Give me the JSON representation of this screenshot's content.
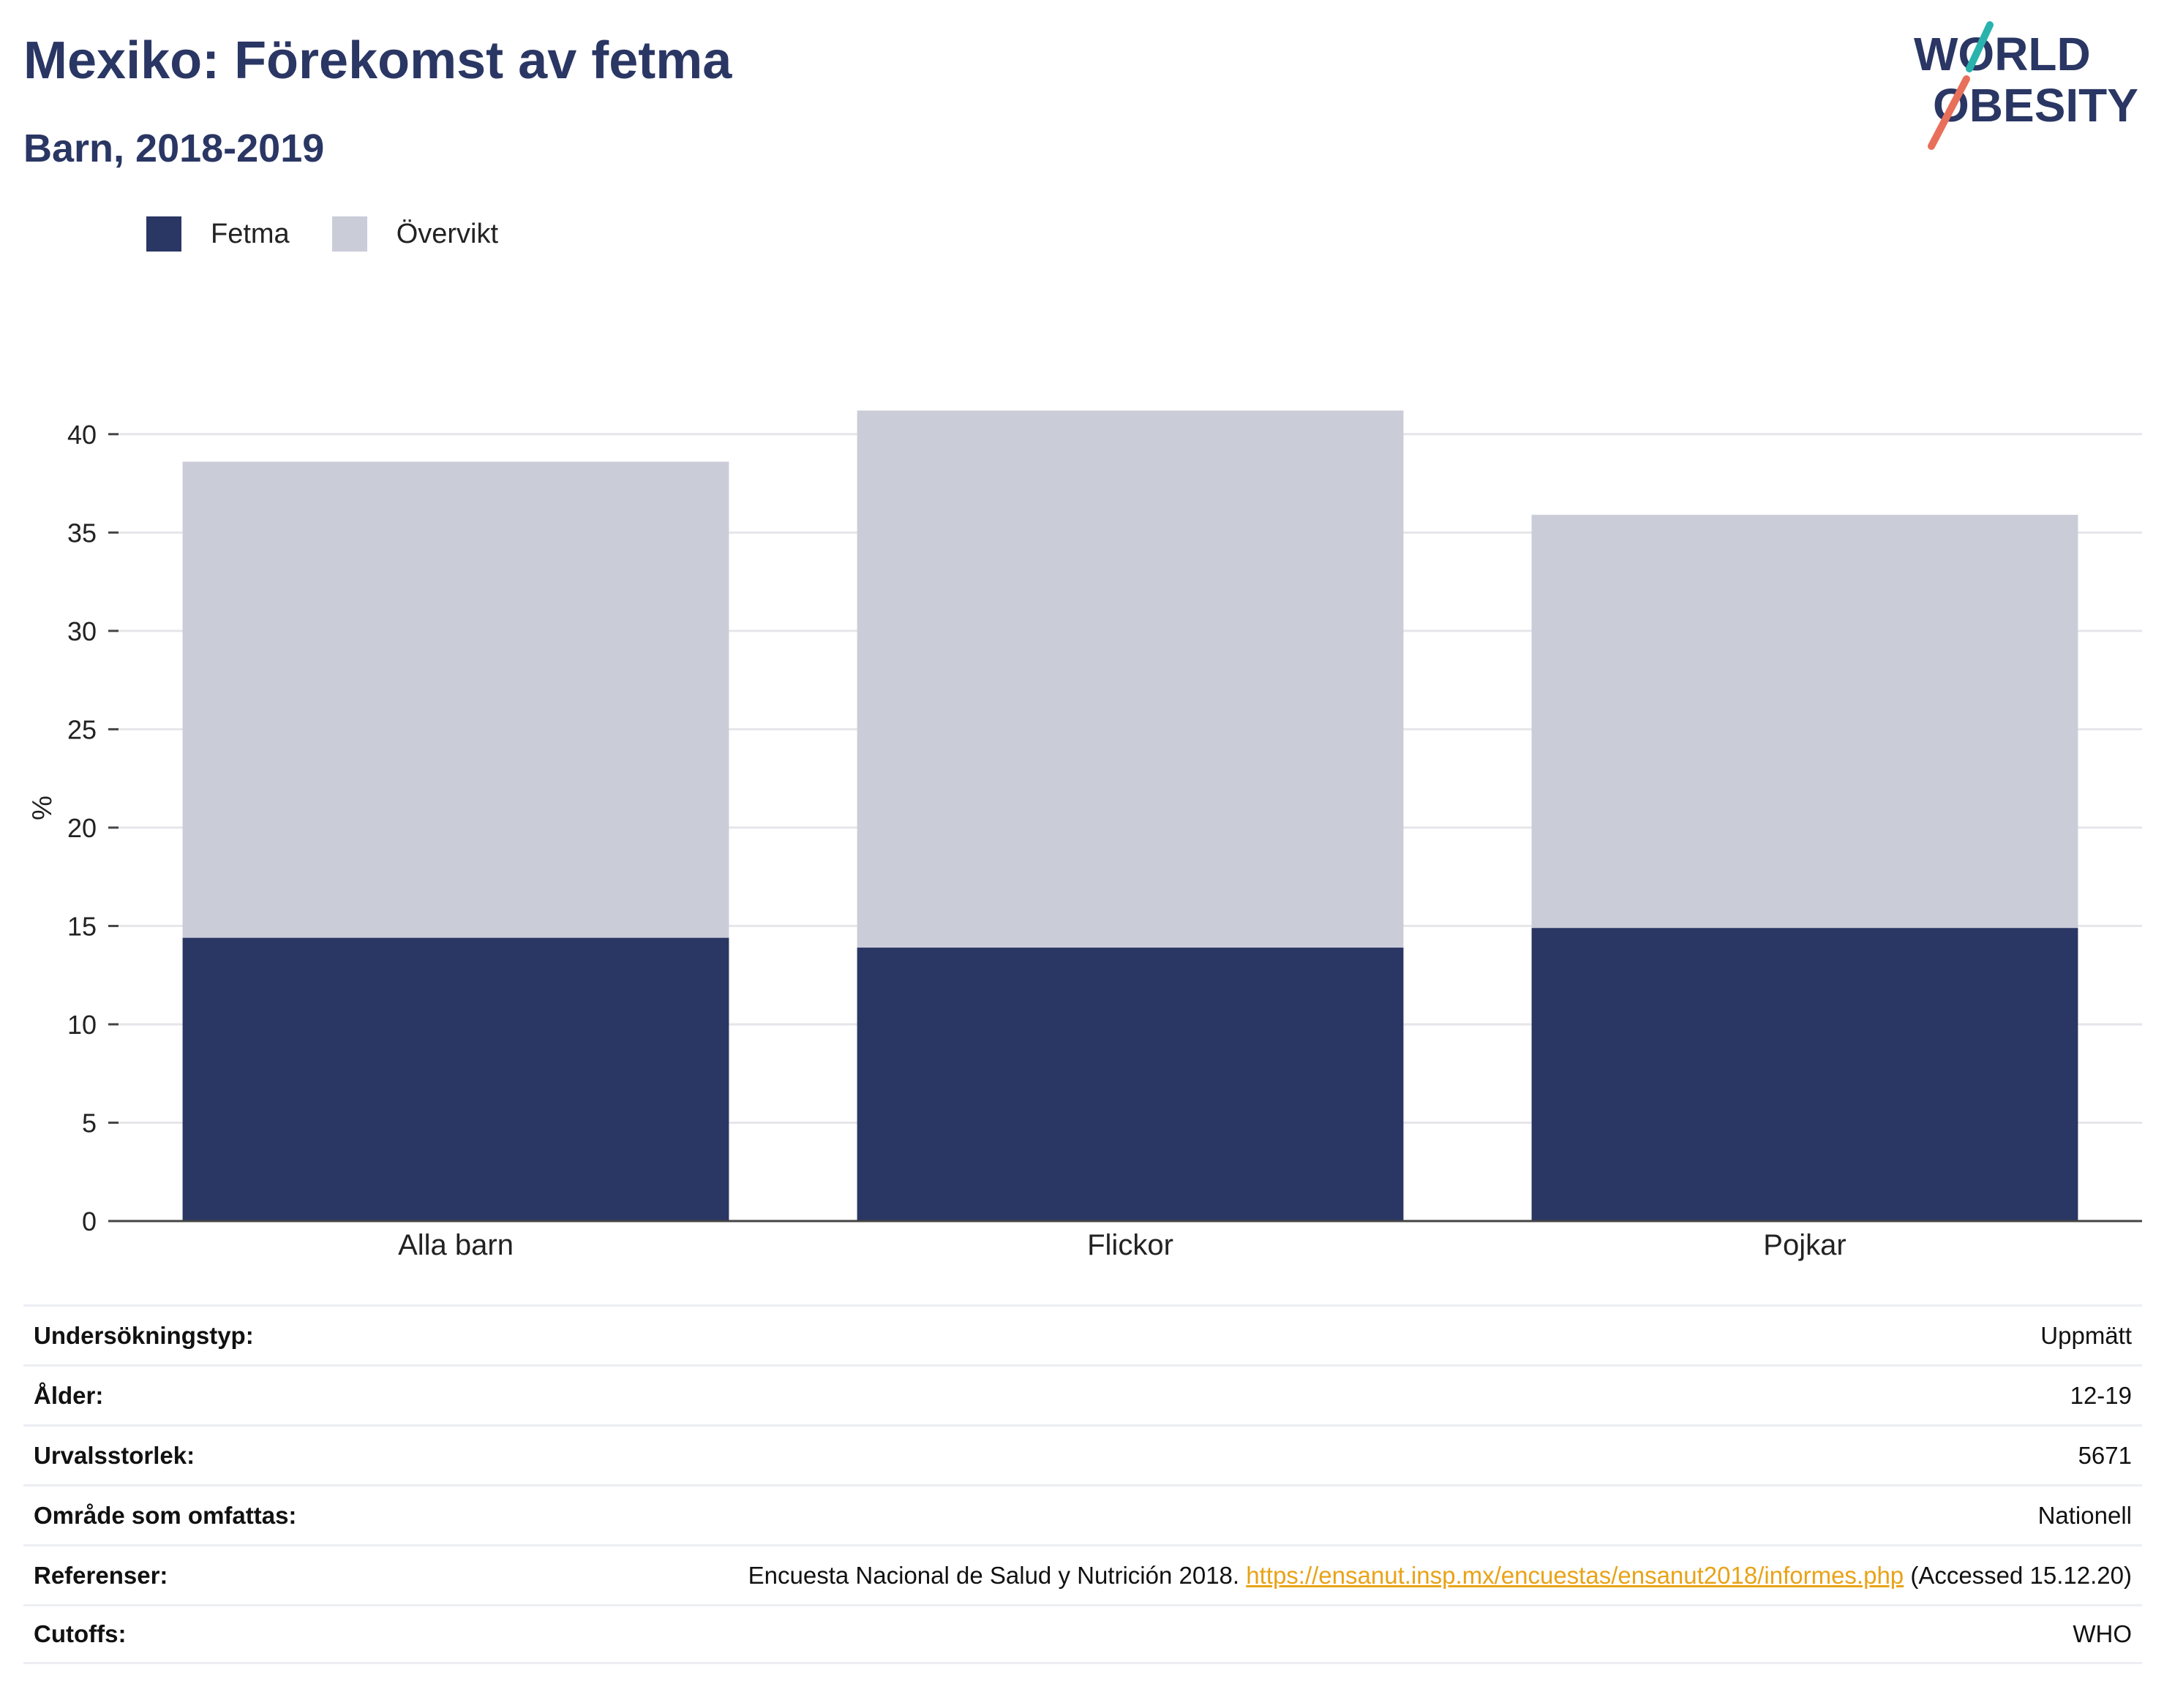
{
  "header": {
    "title": "Mexiko: Förekomst av fetma",
    "subtitle": "Barn, 2018-2019"
  },
  "logo": {
    "line1": "WORLD",
    "line2": "OBESITY"
  },
  "chart_data": {
    "type": "bar",
    "stacked": true,
    "categories": [
      "Alla barn",
      "Flickor",
      "Pojkar"
    ],
    "series": [
      {
        "name": "Fetma",
        "color": "#2a3663",
        "values": [
          14.4,
          13.9,
          14.9
        ]
      },
      {
        "name": "Övervikt",
        "color": "#caccd8",
        "values": [
          24.2,
          27.3,
          21.0
        ]
      }
    ],
    "ylabel": "%",
    "ylim": [
      0,
      42
    ],
    "yticks": [
      0,
      5,
      10,
      15,
      20,
      25,
      30,
      35,
      40
    ],
    "grid": true,
    "legend_position": "top-left"
  },
  "meta": {
    "rows": [
      {
        "label": "Undersökningstyp:",
        "value": "Uppmätt"
      },
      {
        "label": "Ålder:",
        "value": "12-19"
      },
      {
        "label": "Urvalsstorlek:",
        "value": "5671"
      },
      {
        "label": "Område som omfattas:",
        "value": "Nationell"
      },
      {
        "label": "Referenser:",
        "value_prefix": "Encuesta Nacional de Salud y Nutrición 2018. ",
        "link": "https://ensanut.insp.mx/encuestas/ensanut2018/informes.php",
        "value_suffix": " (Accessed 15.12.20)"
      },
      {
        "label": "Cutoffs:",
        "value": "WHO"
      }
    ]
  },
  "colors": {
    "text": "#2a3663",
    "link": "#e8a317",
    "grid": "#e6e6ea",
    "logo_teal": "#2ab3ad",
    "logo_coral": "#e8705a"
  }
}
